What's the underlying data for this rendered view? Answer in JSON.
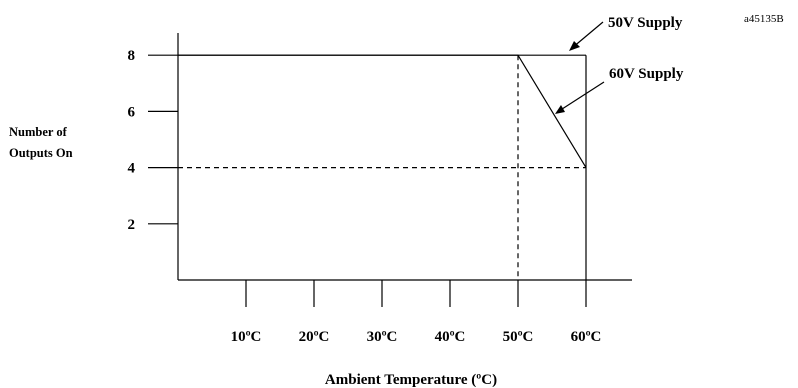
{
  "chart_data": {
    "type": "line",
    "ref_code": "a45135B",
    "xlabel": "Ambient Temperature (ºC)",
    "ylabel_lines": [
      "Number of",
      "Outputs On"
    ],
    "x_ticks": [
      10,
      20,
      30,
      40,
      50,
      60
    ],
    "x_tick_labels": [
      "10ºC",
      "20ºC",
      "30ºC",
      "40ºC",
      "50ºC",
      "60ºC"
    ],
    "y_ticks": [
      2,
      4,
      6,
      8
    ],
    "y_tick_labels": [
      "2",
      "4",
      "6",
      "8"
    ],
    "xlim": [
      0,
      60
    ],
    "ylim": [
      0,
      8.5
    ],
    "series": [
      {
        "name": "50V Supply",
        "x": [
          0,
          60
        ],
        "y": [
          8,
          8
        ]
      },
      {
        "name": "60V Supply",
        "x": [
          0,
          50,
          60
        ],
        "y": [
          8,
          8,
          4
        ]
      }
    ],
    "reference_lines": [
      {
        "orientation": "vertical",
        "value": 50,
        "from": 0,
        "to": 8
      },
      {
        "orientation": "horizontal",
        "value": 4,
        "from": 0,
        "to": 60
      }
    ]
  }
}
